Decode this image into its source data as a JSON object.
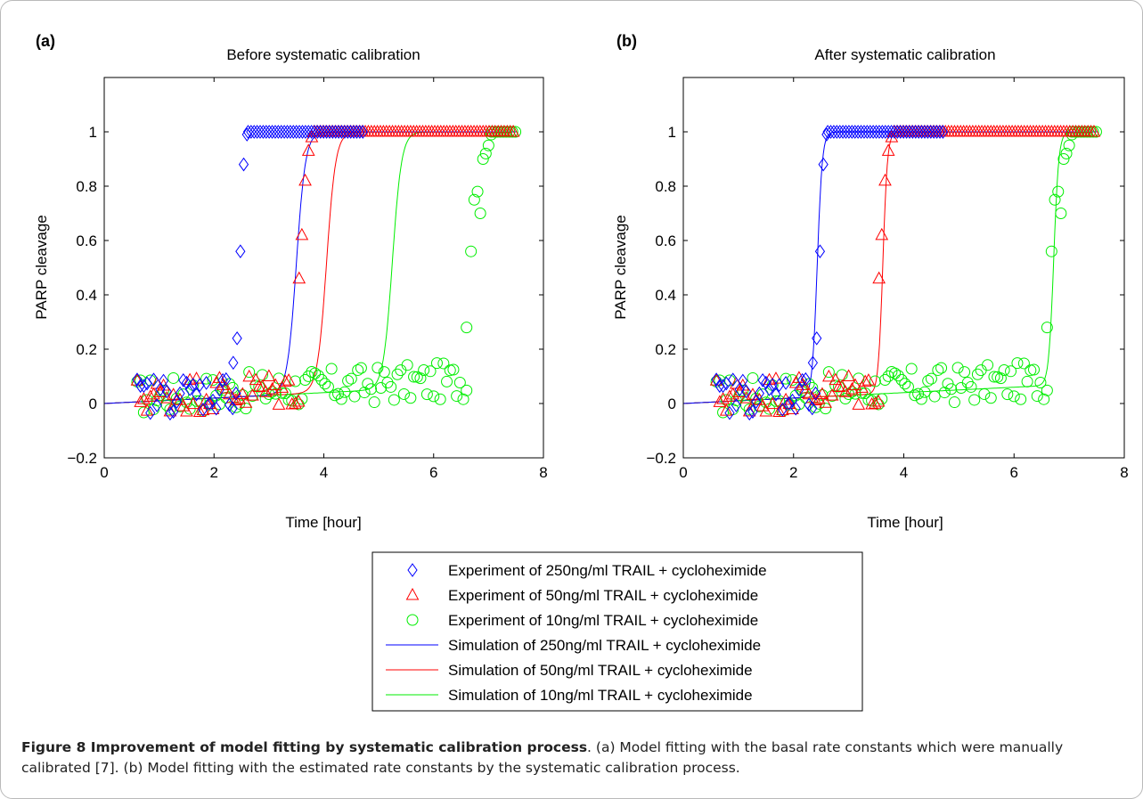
{
  "figure": {
    "caption_bold": "Figure 8 Improvement of model fitting by systematic calibration process",
    "caption_text": ". (a) Model fitting with the basal rate constants which were manually calibrated [7]. (b) Model fitting with the estimated rate constants by the systematic calibration process."
  },
  "legend": {
    "entries": [
      {
        "label": "Experiment of 250ng/ml TRAIL + cycloheximide",
        "color": "#0000ff",
        "kind": "diamond"
      },
      {
        "label": "Experiment of 50ng/ml TRAIL + cycloheximide",
        "color": "#ff0000",
        "kind": "triangle"
      },
      {
        "label": "Experiment of 10ng/ml TRAIL + cycloheximide",
        "color": "#00ee00",
        "kind": "circle"
      },
      {
        "label": "Simulation of 250ng/ml TRAIL + cycloheximide",
        "color": "#0000ff",
        "kind": "line"
      },
      {
        "label": "Simulation of 50ng/ml TRAIL + cycloheximide",
        "color": "#ff0000",
        "kind": "line"
      },
      {
        "label": "Simulation of 10ng/ml TRAIL + cycloheximide",
        "color": "#00ee00",
        "kind": "line"
      }
    ]
  },
  "chart_data": [
    {
      "type": "scatter",
      "panel_label": "(a)",
      "title": "Before systematic calibration",
      "xlabel": "Time [hour]",
      "ylabel": "PARP cleavage",
      "xlim": [
        0,
        8
      ],
      "ylim": [
        -0.2,
        1.2
      ],
      "xticks": [
        "0",
        "2",
        "4",
        "6",
        "8"
      ],
      "yticks": [
        "−0.2",
        "0",
        "0.2",
        "0.4",
        "0.6",
        "0.8",
        "1"
      ],
      "experiments": {
        "e250": {
          "rise_x": [
            2.35,
            2.42,
            2.48,
            2.54,
            2.6
          ],
          "rise_y": [
            0.15,
            0.24,
            0.56,
            0.88,
            0.99
          ],
          "noise_end": 2.42,
          "sat_start": 2.62,
          "sat_end": 4.72
        },
        "e50": {
          "rise_x": [
            3.55,
            3.6,
            3.66,
            3.72,
            3.78
          ],
          "rise_y": [
            0.46,
            0.62,
            0.82,
            0.93,
            0.98
          ],
          "noise_end": 3.55,
          "sat_start": 3.82,
          "sat_end": 7.5
        },
        "e10": {
          "rise_x": [
            6.6,
            6.68,
            6.74,
            6.8,
            6.85,
            6.9,
            6.95,
            7.0,
            7.05
          ],
          "rise_y": [
            0.28,
            0.56,
            0.75,
            0.78,
            0.7,
            0.9,
            0.92,
            0.95,
            0.99
          ],
          "noise_end": 6.6,
          "sat_start": 7.05,
          "sat_end": 7.5
        }
      },
      "simulations": {
        "s250": {
          "midpoint": 3.5,
          "slope": 12,
          "start": 0
        },
        "s50": {
          "midpoint": 4.05,
          "slope": 12,
          "start": 0
        },
        "s10": {
          "midpoint": 5.25,
          "slope": 12,
          "start": 0
        }
      }
    },
    {
      "type": "scatter",
      "panel_label": "(b)",
      "title": "After systematic calibration",
      "xlabel": "Time [hour]",
      "ylabel": "PARP cleavage",
      "xlim": [
        0,
        8
      ],
      "ylim": [
        -0.2,
        1.2
      ],
      "xticks": [
        "0",
        "2",
        "4",
        "6",
        "8"
      ],
      "yticks": [
        "−0.2",
        "0",
        "0.2",
        "0.4",
        "0.6",
        "0.8",
        "1"
      ],
      "experiments": {
        "e250": {
          "rise_x": [
            2.35,
            2.42,
            2.48,
            2.54,
            2.6
          ],
          "rise_y": [
            0.15,
            0.24,
            0.56,
            0.88,
            0.99
          ],
          "noise_end": 2.42,
          "sat_start": 2.62,
          "sat_end": 4.72
        },
        "e50": {
          "rise_x": [
            3.55,
            3.6,
            3.66,
            3.72,
            3.78
          ],
          "rise_y": [
            0.46,
            0.62,
            0.82,
            0.93,
            0.98
          ],
          "noise_end": 3.55,
          "sat_start": 3.82,
          "sat_end": 7.5
        },
        "e10": {
          "rise_x": [
            6.6,
            6.68,
            6.74,
            6.8,
            6.85,
            6.9,
            6.95,
            7.0,
            7.05
          ],
          "rise_y": [
            0.28,
            0.56,
            0.75,
            0.78,
            0.7,
            0.9,
            0.92,
            0.95,
            0.99
          ],
          "noise_end": 6.6,
          "sat_start": 7.05,
          "sat_end": 7.5
        }
      },
      "simulations": {
        "s250": {
          "midpoint": 2.43,
          "slope": 22,
          "start": 0
        },
        "s50": {
          "midpoint": 3.62,
          "slope": 24,
          "start": 0
        },
        "s10": {
          "midpoint": 6.72,
          "slope": 22,
          "start": 0
        }
      }
    }
  ]
}
